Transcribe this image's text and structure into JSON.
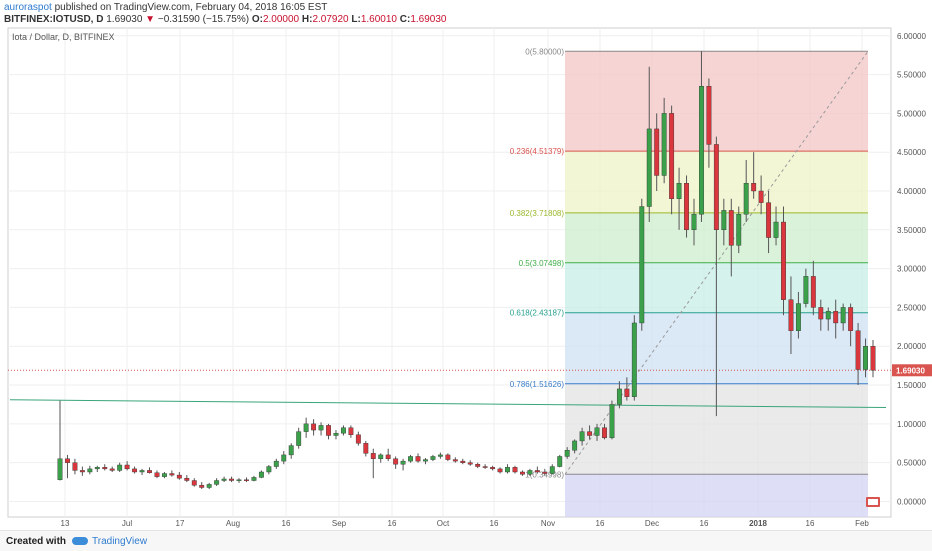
{
  "header": {
    "author": "auroraspot",
    "published_text": "published on TradingView.com, February 04, 2018 16:05 EST",
    "symbol": "BITFINEX:IOTUSD, D",
    "last": "1.69030",
    "change_arrow": "▼",
    "change": "−0.31590 (−15.75%)",
    "o_label": "O:",
    "o_value": "2.00000",
    "h_label": "H:",
    "h_value": "2.07920",
    "l_label": "L:",
    "l_value": "1.60010",
    "c_label": "C:",
    "c_value": "1.69030"
  },
  "footer": {
    "created_with": "Created with",
    "brand": "TradingView"
  },
  "chart_data": {
    "type": "candlestick",
    "title": "Iota / Dollar, D, BITFINEX",
    "ylim": [
      -0.2,
      6.1
    ],
    "x_ticks": [
      "13",
      "Jul",
      "17",
      "Aug",
      "16",
      "Sep",
      "16",
      "Oct",
      "16",
      "Nov",
      "16",
      "Dec",
      "16",
      "2018",
      "16",
      "Feb"
    ],
    "y_ticks": [
      "6.00000",
      "5.50000",
      "5.00000",
      "4.50000",
      "4.00000",
      "3.50000",
      "3.00000",
      "2.50000",
      "2.00000",
      "1.50000",
      "1.00000",
      "0.50000",
      "0.00000"
    ],
    "last_price_label": "1.69030",
    "last_price": 1.6903,
    "fib_levels": [
      {
        "label": "0(5.80000)",
        "value": 5.8,
        "color": "#888888"
      },
      {
        "label": "0.236(4.51379)",
        "value": 4.51379,
        "color": "#d9534f"
      },
      {
        "label": "0.382(3.71808)",
        "value": 3.71808,
        "color": "#9bb82a"
      },
      {
        "label": "0.5(3.07498)",
        "value": 3.07498,
        "color": "#3fae49"
      },
      {
        "label": "0.618(2.43187)",
        "value": 2.43187,
        "color": "#27a08f"
      },
      {
        "label": "0.786(1.51626)",
        "value": 1.51626,
        "color": "#3a7dc9"
      },
      {
        "label": "1(0.34998)",
        "value": 0.34998,
        "color": "#888888"
      }
    ],
    "fib_colors": {
      "z1": "#f4c6c6",
      "z2": "#eef3c6",
      "z3": "#cdeecd",
      "z4": "#c8ede6",
      "z5": "#cfe0f3",
      "z6": "#e3e3e3",
      "z7": "#d3d3f3"
    },
    "trendline": {
      "start": 1.31,
      "end": 1.21,
      "color": "#3aa57a"
    },
    "fib_diagonal": {
      "from": 0.35,
      "to": 5.8
    },
    "candles": [
      {
        "o": 0.28,
        "h": 1.3,
        "l": 0.27,
        "c": 0.55
      },
      {
        "o": 0.55,
        "h": 0.6,
        "l": 0.3,
        "c": 0.5
      },
      {
        "o": 0.5,
        "h": 0.55,
        "l": 0.35,
        "c": 0.4
      },
      {
        "o": 0.4,
        "h": 0.45,
        "l": 0.33,
        "c": 0.38
      },
      {
        "o": 0.38,
        "h": 0.46,
        "l": 0.35,
        "c": 0.42
      },
      {
        "o": 0.42,
        "h": 0.46,
        "l": 0.38,
        "c": 0.44
      },
      {
        "o": 0.44,
        "h": 0.48,
        "l": 0.4,
        "c": 0.42
      },
      {
        "o": 0.42,
        "h": 0.45,
        "l": 0.38,
        "c": 0.4
      },
      {
        "o": 0.4,
        "h": 0.5,
        "l": 0.38,
        "c": 0.47
      },
      {
        "o": 0.47,
        "h": 0.52,
        "l": 0.4,
        "c": 0.42
      },
      {
        "o": 0.42,
        "h": 0.45,
        "l": 0.36,
        "c": 0.38
      },
      {
        "o": 0.38,
        "h": 0.42,
        "l": 0.34,
        "c": 0.4
      },
      {
        "o": 0.4,
        "h": 0.44,
        "l": 0.36,
        "c": 0.37
      },
      {
        "o": 0.37,
        "h": 0.4,
        "l": 0.3,
        "c": 0.32
      },
      {
        "o": 0.32,
        "h": 0.38,
        "l": 0.3,
        "c": 0.36
      },
      {
        "o": 0.36,
        "h": 0.4,
        "l": 0.32,
        "c": 0.34
      },
      {
        "o": 0.34,
        "h": 0.38,
        "l": 0.28,
        "c": 0.3
      },
      {
        "o": 0.3,
        "h": 0.34,
        "l": 0.25,
        "c": 0.27
      },
      {
        "o": 0.27,
        "h": 0.3,
        "l": 0.19,
        "c": 0.21
      },
      {
        "o": 0.21,
        "h": 0.25,
        "l": 0.16,
        "c": 0.18
      },
      {
        "o": 0.18,
        "h": 0.24,
        "l": 0.16,
        "c": 0.22
      },
      {
        "o": 0.22,
        "h": 0.3,
        "l": 0.2,
        "c": 0.27
      },
      {
        "o": 0.27,
        "h": 0.32,
        "l": 0.25,
        "c": 0.29
      },
      {
        "o": 0.29,
        "h": 0.32,
        "l": 0.25,
        "c": 0.27
      },
      {
        "o": 0.27,
        "h": 0.3,
        "l": 0.24,
        "c": 0.28
      },
      {
        "o": 0.28,
        "h": 0.31,
        "l": 0.25,
        "c": 0.27
      },
      {
        "o": 0.27,
        "h": 0.33,
        "l": 0.26,
        "c": 0.31
      },
      {
        "o": 0.31,
        "h": 0.4,
        "l": 0.3,
        "c": 0.38
      },
      {
        "o": 0.38,
        "h": 0.47,
        "l": 0.35,
        "c": 0.45
      },
      {
        "o": 0.45,
        "h": 0.55,
        "l": 0.42,
        "c": 0.52
      },
      {
        "o": 0.52,
        "h": 0.65,
        "l": 0.48,
        "c": 0.6
      },
      {
        "o": 0.6,
        "h": 0.75,
        "l": 0.55,
        "c": 0.72
      },
      {
        "o": 0.72,
        "h": 0.95,
        "l": 0.68,
        "c": 0.9
      },
      {
        "o": 0.9,
        "h": 1.08,
        "l": 0.82,
        "c": 1.0
      },
      {
        "o": 1.0,
        "h": 1.06,
        "l": 0.85,
        "c": 0.92
      },
      {
        "o": 0.92,
        "h": 1.02,
        "l": 0.85,
        "c": 0.98
      },
      {
        "o": 0.98,
        "h": 1.0,
        "l": 0.8,
        "c": 0.85
      },
      {
        "o": 0.85,
        "h": 0.92,
        "l": 0.8,
        "c": 0.88
      },
      {
        "o": 0.88,
        "h": 0.98,
        "l": 0.85,
        "c": 0.95
      },
      {
        "o": 0.95,
        "h": 0.98,
        "l": 0.82,
        "c": 0.86
      },
      {
        "o": 0.86,
        "h": 0.9,
        "l": 0.72,
        "c": 0.75
      },
      {
        "o": 0.75,
        "h": 0.78,
        "l": 0.58,
        "c": 0.62
      },
      {
        "o": 0.62,
        "h": 0.68,
        "l": 0.3,
        "c": 0.55
      },
      {
        "o": 0.55,
        "h": 0.62,
        "l": 0.5,
        "c": 0.6
      },
      {
        "o": 0.6,
        "h": 0.68,
        "l": 0.52,
        "c": 0.55
      },
      {
        "o": 0.55,
        "h": 0.58,
        "l": 0.42,
        "c": 0.48
      },
      {
        "o": 0.48,
        "h": 0.55,
        "l": 0.4,
        "c": 0.52
      },
      {
        "o": 0.52,
        "h": 0.6,
        "l": 0.5,
        "c": 0.58
      },
      {
        "o": 0.58,
        "h": 0.62,
        "l": 0.5,
        "c": 0.52
      },
      {
        "o": 0.52,
        "h": 0.56,
        "l": 0.48,
        "c": 0.54
      },
      {
        "o": 0.54,
        "h": 0.6,
        "l": 0.52,
        "c": 0.58
      },
      {
        "o": 0.58,
        "h": 0.63,
        "l": 0.55,
        "c": 0.6
      },
      {
        "o": 0.6,
        "h": 0.62,
        "l": 0.52,
        "c": 0.54
      },
      {
        "o": 0.54,
        "h": 0.57,
        "l": 0.5,
        "c": 0.52
      },
      {
        "o": 0.52,
        "h": 0.55,
        "l": 0.48,
        "c": 0.5
      },
      {
        "o": 0.5,
        "h": 0.53,
        "l": 0.46,
        "c": 0.48
      },
      {
        "o": 0.48,
        "h": 0.5,
        "l": 0.43,
        "c": 0.45
      },
      {
        "o": 0.45,
        "h": 0.48,
        "l": 0.42,
        "c": 0.44
      },
      {
        "o": 0.44,
        "h": 0.46,
        "l": 0.4,
        "c": 0.42
      },
      {
        "o": 0.42,
        "h": 0.44,
        "l": 0.36,
        "c": 0.38
      },
      {
        "o": 0.38,
        "h": 0.48,
        "l": 0.36,
        "c": 0.44
      },
      {
        "o": 0.44,
        "h": 0.46,
        "l": 0.36,
        "c": 0.38
      },
      {
        "o": 0.38,
        "h": 0.4,
        "l": 0.33,
        "c": 0.35
      },
      {
        "o": 0.35,
        "h": 0.42,
        "l": 0.33,
        "c": 0.4
      },
      {
        "o": 0.4,
        "h": 0.45,
        "l": 0.36,
        "c": 0.38
      },
      {
        "o": 0.38,
        "h": 0.42,
        "l": 0.34,
        "c": 0.36
      },
      {
        "o": 0.36,
        "h": 0.48,
        "l": 0.35,
        "c": 0.45
      },
      {
        "o": 0.45,
        "h": 0.6,
        "l": 0.44,
        "c": 0.58
      },
      {
        "o": 0.58,
        "h": 0.7,
        "l": 0.55,
        "c": 0.66
      },
      {
        "o": 0.66,
        "h": 0.8,
        "l": 0.62,
        "c": 0.78
      },
      {
        "o": 0.78,
        "h": 0.95,
        "l": 0.72,
        "c": 0.9
      },
      {
        "o": 0.9,
        "h": 0.98,
        "l": 0.8,
        "c": 0.85
      },
      {
        "o": 0.85,
        "h": 1.0,
        "l": 0.78,
        "c": 0.95
      },
      {
        "o": 0.95,
        "h": 1.0,
        "l": 0.8,
        "c": 0.82
      },
      {
        "o": 0.82,
        "h": 1.3,
        "l": 0.8,
        "c": 1.25
      },
      {
        "o": 1.25,
        "h": 1.55,
        "l": 1.2,
        "c": 1.45
      },
      {
        "o": 1.45,
        "h": 1.6,
        "l": 1.3,
        "c": 1.35
      },
      {
        "o": 1.35,
        "h": 2.4,
        "l": 1.3,
        "c": 2.3
      },
      {
        "o": 2.3,
        "h": 3.9,
        "l": 2.2,
        "c": 3.8
      },
      {
        "o": 3.8,
        "h": 5.6,
        "l": 3.6,
        "c": 4.8
      },
      {
        "o": 4.8,
        "h": 5.0,
        "l": 4.0,
        "c": 4.2
      },
      {
        "o": 4.2,
        "h": 5.2,
        "l": 4.1,
        "c": 5.0
      },
      {
        "o": 5.0,
        "h": 5.1,
        "l": 3.7,
        "c": 3.9
      },
      {
        "o": 3.9,
        "h": 4.3,
        "l": 3.5,
        "c": 4.1
      },
      {
        "o": 4.1,
        "h": 4.2,
        "l": 3.4,
        "c": 3.5
      },
      {
        "o": 3.5,
        "h": 3.9,
        "l": 3.3,
        "c": 3.7
      },
      {
        "o": 3.7,
        "h": 5.8,
        "l": 3.6,
        "c": 5.35
      },
      {
        "o": 5.35,
        "h": 5.45,
        "l": 4.3,
        "c": 4.6
      },
      {
        "o": 4.6,
        "h": 4.7,
        "l": 1.1,
        "c": 3.5
      },
      {
        "o": 3.5,
        "h": 3.9,
        "l": 3.3,
        "c": 3.75
      },
      {
        "o": 3.75,
        "h": 3.9,
        "l": 2.9,
        "c": 3.3
      },
      {
        "o": 3.3,
        "h": 3.8,
        "l": 3.2,
        "c": 3.7
      },
      {
        "o": 3.7,
        "h": 4.4,
        "l": 3.6,
        "c": 4.1
      },
      {
        "o": 4.1,
        "h": 4.5,
        "l": 3.9,
        "c": 4.0
      },
      {
        "o": 4.0,
        "h": 4.2,
        "l": 3.7,
        "c": 3.85
      },
      {
        "o": 3.85,
        "h": 4.0,
        "l": 3.2,
        "c": 3.4
      },
      {
        "o": 3.4,
        "h": 3.8,
        "l": 3.3,
        "c": 3.6
      },
      {
        "o": 3.6,
        "h": 3.8,
        "l": 2.4,
        "c": 2.6
      },
      {
        "o": 2.6,
        "h": 2.9,
        "l": 1.9,
        "c": 2.2
      },
      {
        "o": 2.2,
        "h": 2.7,
        "l": 2.1,
        "c": 2.55
      },
      {
        "o": 2.55,
        "h": 3.0,
        "l": 2.5,
        "c": 2.9
      },
      {
        "o": 2.9,
        "h": 3.1,
        "l": 2.4,
        "c": 2.5
      },
      {
        "o": 2.5,
        "h": 2.6,
        "l": 2.2,
        "c": 2.35
      },
      {
        "o": 2.35,
        "h": 2.5,
        "l": 2.2,
        "c": 2.45
      },
      {
        "o": 2.45,
        "h": 2.6,
        "l": 2.1,
        "c": 2.3
      },
      {
        "o": 2.3,
        "h": 2.55,
        "l": 2.2,
        "c": 2.5
      },
      {
        "o": 2.5,
        "h": 2.55,
        "l": 2.0,
        "c": 2.2
      },
      {
        "o": 2.2,
        "h": 2.3,
        "l": 1.5,
        "c": 1.7
      },
      {
        "o": 1.7,
        "h": 2.1,
        "l": 1.6,
        "c": 2.0
      },
      {
        "o": 2.0,
        "h": 2.08,
        "l": 1.6,
        "c": 1.69
      }
    ]
  }
}
